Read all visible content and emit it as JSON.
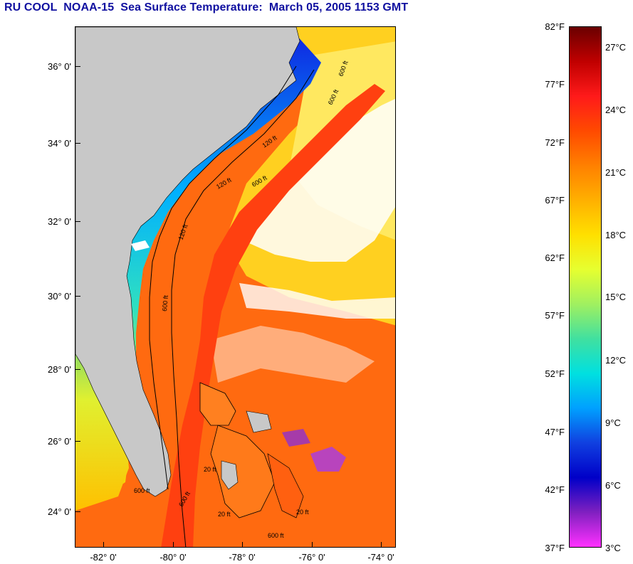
{
  "title": "RU COOL  NOAA-15  Sea Surface Temperature:  March 05, 2005 1153 GMT",
  "lat_labels": [
    "36° 0'",
    "34° 0'",
    "32° 0'",
    "30° 0'",
    "28° 0'",
    "26° 0'",
    "24° 0'"
  ],
  "lon_labels": [
    "-82° 0'",
    "-80° 0'",
    "-78° 0'",
    "-76° 0'",
    "-74° 0'"
  ],
  "colorbar": {
    "fahrenheit": [
      "82°F",
      "77°F",
      "72°F",
      "67°F",
      "62°F",
      "57°F",
      "52°F",
      "47°F",
      "42°F",
      "37°F"
    ],
    "celsius": [
      "27°C",
      "24°C",
      "21°C",
      "18°C",
      "15°C",
      "12°C",
      "9°C",
      "6°C",
      "3°C"
    ],
    "colors": [
      "#6a0000",
      "#c00000",
      "#ff1a1a",
      "#ff4a00",
      "#ff8000",
      "#ffb000",
      "#ffe000",
      "#e6ff30",
      "#a0f060",
      "#40e0a0",
      "#00e0e0",
      "#00a0ff",
      "#1040e0",
      "#0000c8",
      "#8020c0",
      "#ff30ff"
    ]
  },
  "contour_labels": [
    "600 ft",
    "600 ft",
    "120 ft",
    "120 ft",
    "600 ft",
    "120 ft",
    "600 ft",
    "20 ft",
    "20 ft",
    "600 ft",
    "600 ft",
    "20 ft",
    "600 ft"
  ]
}
